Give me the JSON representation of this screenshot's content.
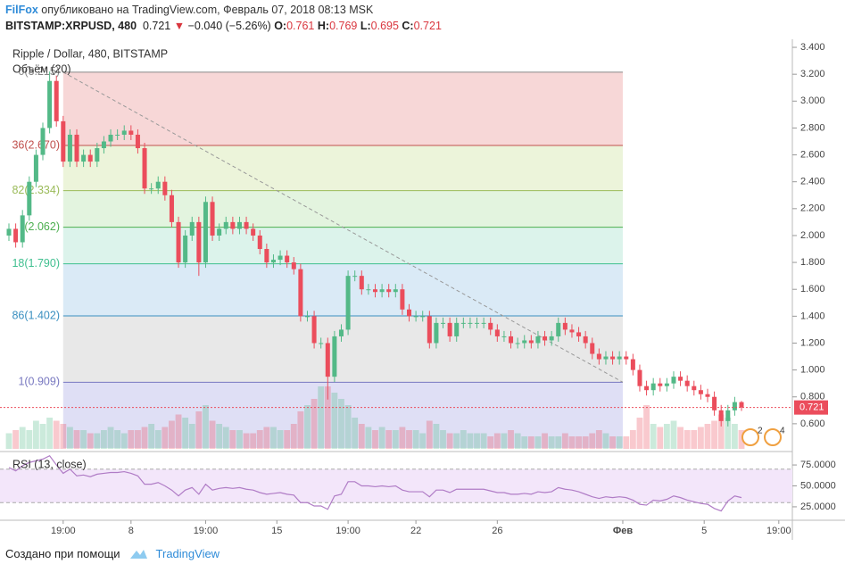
{
  "header": {
    "author": "FilFox",
    "published": "опубликовано на TradingView.com, Февраль 07, 2018 08:13 MSK",
    "symbol": "BITSTAMP:XRPUSD, 480",
    "last": "0.721",
    "change": "−0.040 (−5.26%)",
    "ohlc": [
      "O:",
      "0.761",
      "H:",
      "0.769",
      "L:",
      "0.695",
      "C:",
      "0.721"
    ]
  },
  "footer": {
    "text": "Создано при помощи",
    "brand": "TradingView"
  },
  "chart_data": {
    "type": "candlestick",
    "title": "Ripple / Dollar, 480, BITSTAMP",
    "volume_title": "Объём (20)",
    "open": [
      2.0,
      2.05,
      1.95,
      2.15,
      2.4,
      2.6,
      2.8,
      3.15,
      2.85,
      2.55,
      2.75,
      2.55,
      2.6,
      2.55,
      2.65,
      2.7,
      2.75,
      2.75,
      2.78,
      2.75,
      2.65,
      2.35,
      2.35,
      2.4,
      2.3,
      2.1,
      1.8,
      2.0,
      2.1,
      1.8,
      2.25,
      2.0,
      2.05,
      2.1,
      2.05,
      2.1,
      2.05,
      2.0,
      1.9,
      1.8,
      1.82,
      1.85,
      1.8,
      1.75,
      1.4,
      1.4,
      1.2,
      1.2,
      0.95,
      1.25,
      1.3,
      1.7,
      1.7,
      1.6,
      1.6,
      1.58,
      1.6,
      1.58,
      1.6,
      1.45,
      1.4,
      1.4,
      1.4,
      1.2,
      1.35,
      1.35,
      1.25,
      1.35,
      1.35,
      1.35,
      1.35,
      1.35,
      1.3,
      1.25,
      1.25,
      1.2,
      1.2,
      1.22,
      1.2,
      1.25,
      1.22,
      1.25,
      1.35,
      1.3,
      1.28,
      1.25,
      1.2,
      1.12,
      1.08,
      1.1,
      1.08,
      1.1,
      1.08,
      1.0,
      0.88,
      0.85,
      0.9,
      0.88,
      0.9,
      0.95,
      0.92,
      0.88,
      0.85,
      0.82,
      0.8,
      0.7,
      0.62,
      0.7,
      0.761
    ],
    "high": [
      2.09,
      2.09,
      2.19,
      2.44,
      2.64,
      2.84,
      3.22,
      3.19,
      2.89,
      2.79,
      2.79,
      2.64,
      2.64,
      2.69,
      2.74,
      2.79,
      2.79,
      2.82,
      2.82,
      2.79,
      2.69,
      2.39,
      2.44,
      2.44,
      2.34,
      2.14,
      2.04,
      2.14,
      2.14,
      2.29,
      2.29,
      2.09,
      2.14,
      2.14,
      2.14,
      2.14,
      2.09,
      2.04,
      1.94,
      1.86,
      1.89,
      1.89,
      1.84,
      1.79,
      1.44,
      1.44,
      1.24,
      1.24,
      1.29,
      1.34,
      1.74,
      1.74,
      1.74,
      1.64,
      1.64,
      1.64,
      1.64,
      1.64,
      1.64,
      1.49,
      1.44,
      1.44,
      1.44,
      1.39,
      1.39,
      1.39,
      1.39,
      1.39,
      1.39,
      1.39,
      1.39,
      1.39,
      1.34,
      1.29,
      1.29,
      1.24,
      1.26,
      1.26,
      1.29,
      1.29,
      1.29,
      1.39,
      1.39,
      1.34,
      1.32,
      1.29,
      1.24,
      1.16,
      1.14,
      1.14,
      1.14,
      1.14,
      1.12,
      1.04,
      0.92,
      0.94,
      0.94,
      0.94,
      0.99,
      0.99,
      0.96,
      0.92,
      0.89,
      0.86,
      0.84,
      0.74,
      0.74,
      0.8,
      0.769
    ],
    "low": [
      1.96,
      1.91,
      1.91,
      2.11,
      2.36,
      2.56,
      2.76,
      2.81,
      2.51,
      2.51,
      2.51,
      2.51,
      2.51,
      2.51,
      2.61,
      2.66,
      2.71,
      2.71,
      2.71,
      2.61,
      2.31,
      2.31,
      2.31,
      2.26,
      2.06,
      1.76,
      1.76,
      1.96,
      1.7,
      1.76,
      1.96,
      1.96,
      2.01,
      2.01,
      2.01,
      2.01,
      1.96,
      1.86,
      1.76,
      1.76,
      1.78,
      1.76,
      1.71,
      1.36,
      1.36,
      1.16,
      1.16,
      0.78,
      0.91,
      1.21,
      1.26,
      1.66,
      1.56,
      1.56,
      1.54,
      1.54,
      1.54,
      1.54,
      1.41,
      1.36,
      1.36,
      1.36,
      1.16,
      1.16,
      1.31,
      1.21,
      1.21,
      1.31,
      1.31,
      1.31,
      1.31,
      1.26,
      1.21,
      1.21,
      1.16,
      1.16,
      1.16,
      1.16,
      1.16,
      1.18,
      1.18,
      1.21,
      1.26,
      1.24,
      1.21,
      1.16,
      1.08,
      1.04,
      1.04,
      1.04,
      1.04,
      1.04,
      0.96,
      0.84,
      0.81,
      0.81,
      0.84,
      0.84,
      0.86,
      0.88,
      0.84,
      0.81,
      0.78,
      0.76,
      0.66,
      0.58,
      0.58,
      0.66,
      0.695
    ],
    "close": [
      2.05,
      1.95,
      2.15,
      2.4,
      2.6,
      2.8,
      3.15,
      2.85,
      2.55,
      2.75,
      2.55,
      2.6,
      2.55,
      2.65,
      2.7,
      2.75,
      2.75,
      2.78,
      2.75,
      2.65,
      2.35,
      2.35,
      2.4,
      2.3,
      2.1,
      1.8,
      2.0,
      2.1,
      1.8,
      2.25,
      2.0,
      2.05,
      2.1,
      2.05,
      2.1,
      2.05,
      2.0,
      1.9,
      1.8,
      1.82,
      1.85,
      1.8,
      1.75,
      1.4,
      1.4,
      1.2,
      1.2,
      0.95,
      1.25,
      1.3,
      1.7,
      1.7,
      1.6,
      1.6,
      1.58,
      1.6,
      1.58,
      1.6,
      1.45,
      1.4,
      1.4,
      1.4,
      1.2,
      1.35,
      1.35,
      1.25,
      1.35,
      1.35,
      1.35,
      1.35,
      1.35,
      1.3,
      1.25,
      1.25,
      1.2,
      1.2,
      1.22,
      1.2,
      1.25,
      1.22,
      1.25,
      1.35,
      1.3,
      1.28,
      1.25,
      1.2,
      1.12,
      1.08,
      1.1,
      1.08,
      1.1,
      1.08,
      1.0,
      0.88,
      0.85,
      0.9,
      0.88,
      0.9,
      0.95,
      0.92,
      0.88,
      0.85,
      0.82,
      0.8,
      0.7,
      0.62,
      0.7,
      0.761,
      0.721
    ],
    "volume": [
      25,
      30,
      35,
      30,
      45,
      40,
      50,
      45,
      40,
      35,
      30,
      30,
      25,
      25,
      30,
      35,
      30,
      25,
      30,
      30,
      35,
      40,
      30,
      35,
      45,
      55,
      50,
      40,
      60,
      70,
      45,
      40,
      35,
      30,
      30,
      25,
      25,
      30,
      35,
      35,
      30,
      30,
      40,
      60,
      70,
      80,
      100,
      100,
      90,
      80,
      70,
      50,
      40,
      35,
      30,
      35,
      30,
      30,
      35,
      30,
      30,
      25,
      45,
      40,
      30,
      25,
      25,
      30,
      25,
      25,
      25,
      20,
      25,
      25,
      30,
      25,
      20,
      20,
      20,
      25,
      20,
      20,
      25,
      20,
      20,
      20,
      25,
      30,
      25,
      20,
      20,
      20,
      30,
      50,
      70,
      40,
      35,
      40,
      45,
      35,
      30,
      30,
      35,
      40,
      45,
      55,
      50,
      40,
      30
    ],
    "colors": {
      "up": "#53b987",
      "down": "#eb4d5c"
    },
    "ylim": [
      0.4,
      3.46
    ],
    "yticks": [
      {
        "value": 0.6,
        "label": "0.600"
      },
      {
        "value": 0.8,
        "label": "0.800"
      },
      {
        "value": 1.0,
        "label": "1.000"
      },
      {
        "value": 1.2,
        "label": "1.200"
      },
      {
        "value": 1.4,
        "label": "1.400"
      },
      {
        "value": 1.6,
        "label": "1.600"
      },
      {
        "value": 1.8,
        "label": "1.800"
      },
      {
        "value": 2.0,
        "label": "2.000"
      },
      {
        "value": 2.2,
        "label": "2.200"
      },
      {
        "value": 2.4,
        "label": "2.400"
      },
      {
        "value": 2.6,
        "label": "2.600"
      },
      {
        "value": 2.8,
        "label": "2.800"
      },
      {
        "value": 3.0,
        "label": "3.000"
      },
      {
        "value": 3.2,
        "label": "3.200"
      },
      {
        "value": 3.4,
        "label": "3.400"
      }
    ],
    "xticks": [
      {
        "value": 8,
        "label": "19:00"
      },
      {
        "value": 18,
        "label": "8"
      },
      {
        "value": 29,
        "label": "19:00"
      },
      {
        "value": 39.5,
        "label": "15"
      },
      {
        "value": 50,
        "label": "19:00"
      },
      {
        "value": 60,
        "label": "22"
      },
      {
        "value": 72,
        "label": "26"
      },
      {
        "value": 90.5,
        "label": "Фев"
      },
      {
        "value": 102.5,
        "label": "5"
      },
      {
        "value": 113.5,
        "label": "19:00"
      }
    ],
    "fib_levels": [
      {
        "value": 3.215,
        "label": "0(3.215)"
      },
      {
        "value": 2.67,
        "label": "36(2.670)"
      },
      {
        "value": 2.334,
        "label": "82(2.334)"
      },
      {
        "value": 2.062,
        "label": "(2.062)"
      },
      {
        "value": 1.79,
        "label": "18(1.790)"
      },
      {
        "value": 1.402,
        "label": "86(1.402)"
      },
      {
        "value": 0.909,
        "label": "1(0.909)"
      }
    ],
    "fib_colors": [
      "#888888",
      "#c0504d",
      "#9bbb59",
      "#4caf50",
      "#3fbf8f",
      "#3a8fc0",
      "#7878c0"
    ],
    "fib_fills": [
      "#f6d3d3",
      "#eaf3d6",
      "#e0f3dc",
      "#d8f2e9",
      "#d6e8f5",
      "#e6e6e6",
      "#dcdcf4"
    ],
    "events": [
      "2",
      "4"
    ],
    "rsi": {
      "title": "RSI (13, close)",
      "color": "#b07cc6",
      "values": [
        72,
        68,
        74,
        78,
        80,
        82,
        86,
        75,
        65,
        70,
        62,
        63,
        61,
        64,
        65,
        66,
        66,
        67,
        65,
        62,
        52,
        52,
        54,
        50,
        45,
        38,
        45,
        48,
        40,
        52,
        45,
        47,
        48,
        47,
        48,
        46,
        45,
        42,
        40,
        41,
        42,
        40,
        39,
        30,
        30,
        26,
        26,
        22,
        38,
        40,
        55,
        55,
        50,
        50,
        49,
        50,
        49,
        50,
        45,
        43,
        43,
        43,
        37,
        45,
        45,
        42,
        46,
        46,
        46,
        46,
        46,
        44,
        42,
        42,
        40,
        40,
        41,
        40,
        43,
        42,
        43,
        48,
        46,
        45,
        43,
        40,
        37,
        35,
        37,
        36,
        37,
        36,
        33,
        28,
        27,
        33,
        32,
        34,
        38,
        36,
        33,
        31,
        29,
        28,
        23,
        20,
        32,
        38,
        36
      ],
      "ylim": [
        10,
        90
      ],
      "bands": [
        30,
        70
      ],
      "yticks": [
        {
          "value": 25,
          "label": "25.0000"
        },
        {
          "value": 50,
          "label": "50.0000"
        },
        {
          "value": 75,
          "label": "75.0000"
        }
      ]
    }
  }
}
